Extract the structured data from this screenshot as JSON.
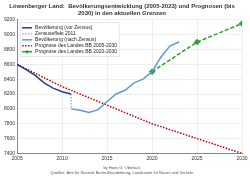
{
  "chart_data": {
    "type": "line",
    "title": "Löwenberger Land:  Bevölkerungsentwicklung (2005-2023) und Prognosen (bis 2030) in den aktuellen Grenzen",
    "credit": "by Hans G. Oberlack",
    "source": "Quellen: Amt für Statistik Berlin-Brandenburg, Landesamt für Bauen und Verkehr",
    "xlim": [
      2005,
      2030
    ],
    "xticks": [
      2005,
      2010,
      2015,
      2020,
      2025,
      2030
    ],
    "ylim": [
      7400,
      9200
    ],
    "yticks": [
      7400,
      7600,
      7800,
      8000,
      8200,
      8400,
      8600,
      8800,
      9000,
      9200
    ],
    "grid": true,
    "legend": "upper left",
    "series": [
      {
        "name": "Bevölkerung (vor Zensus)",
        "color": "#1f3f8f",
        "line_style": "solid",
        "marker": "none",
        "x": [
          2005,
          2006,
          2007,
          2008,
          2009,
          2010,
          2011
        ],
        "values": [
          8600,
          8530,
          8450,
          8350,
          8280,
          8230,
          8200
        ]
      },
      {
        "name": "Zensuseffekt 2011",
        "color": "#8fb3e0",
        "line_style": "dotted",
        "marker": "none",
        "x": [
          2011,
          2011
        ],
        "values": [
          8200,
          8000
        ]
      },
      {
        "name": "Bevölkerung (nach Zensus)",
        "color": "#5b9bd5",
        "line_style": "solid",
        "marker": "none",
        "x": [
          2011,
          2012,
          2013,
          2014,
          2015,
          2016,
          2017,
          2018,
          2019,
          2020,
          2021,
          2022,
          2023
        ],
        "values": [
          8000,
          7980,
          7950,
          7990,
          8100,
          8200,
          8250,
          8350,
          8400,
          8500,
          8700,
          8850,
          8900
        ]
      },
      {
        "name": "Prognose des Landes BB 2005-2030",
        "color": "#c00000",
        "line_style": "dotted",
        "marker": "none",
        "x": [
          2005,
          2010,
          2015,
          2020,
          2025,
          2030
        ],
        "values": [
          8600,
          8300,
          8050,
          7800,
          7600,
          7400
        ]
      },
      {
        "name": "Prognose des Landes BB 2020-2030",
        "color": "#2ca02c",
        "line_style": "dashed",
        "marker": "diamond",
        "x": [
          2020,
          2025,
          2030
        ],
        "values": [
          8500,
          8900,
          9150
        ]
      }
    ]
  }
}
